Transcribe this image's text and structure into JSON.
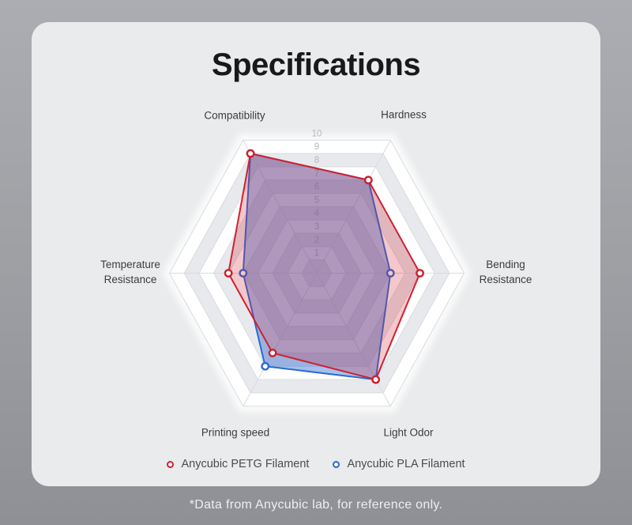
{
  "page": {
    "title": "Specifications",
    "footnote": "*Data from Anycubic lab, for reference only."
  },
  "chart_data": {
    "type": "radar",
    "title": "Specifications",
    "indicators": [
      "Compatibility",
      "Hardness",
      "Bending Resistance",
      "Light Odor",
      "Printing speed",
      "Temperature Resistance"
    ],
    "scale": {
      "min": 0,
      "max": 10,
      "tick_labels": [
        "1",
        "2",
        "3",
        "4",
        "5",
        "6",
        "7",
        "8",
        "9",
        "10"
      ]
    },
    "grid": {
      "shape": "hexagon",
      "rings": 10,
      "split_area": "alternating"
    },
    "legend_position": "bottom",
    "series": [
      {
        "name": "Anycubic PETG Filament",
        "color": "#ce2130",
        "values": [
          9,
          7,
          7,
          8,
          6,
          6
        ]
      },
      {
        "name": "Anycubic PLA Filament",
        "color": "#2a6ad2",
        "values": [
          9,
          7,
          5,
          8,
          7,
          5
        ]
      }
    ]
  }
}
